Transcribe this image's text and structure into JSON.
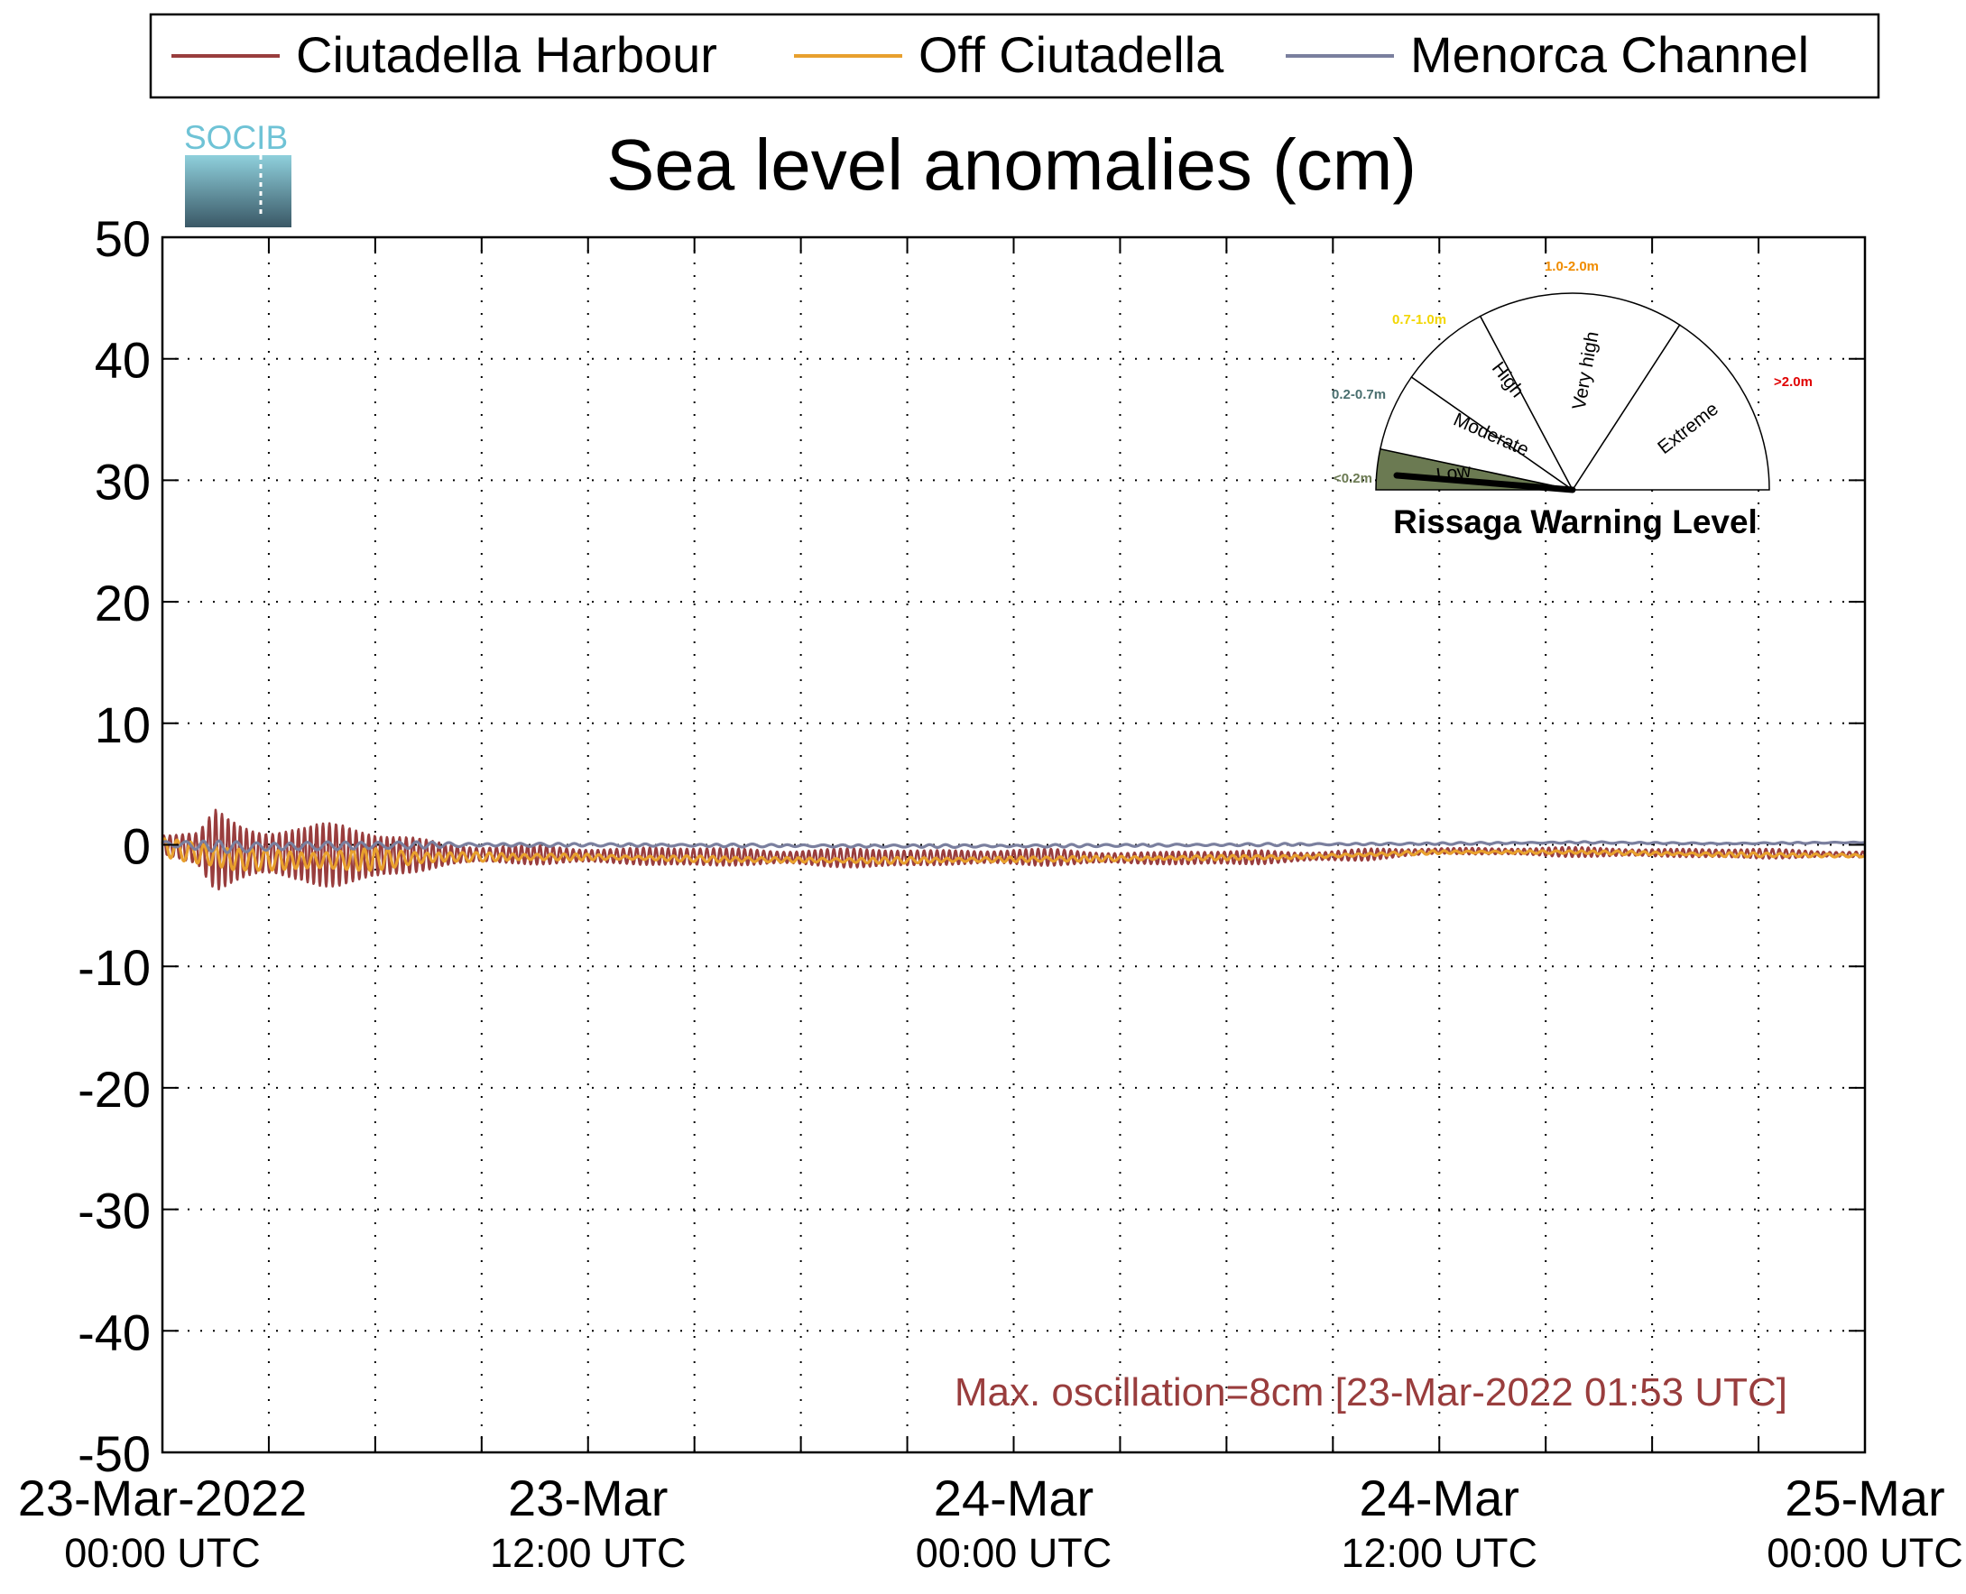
{
  "chart_data": {
    "type": "line",
    "title": "Sea level anomalies (cm)",
    "logo_text": "SOCIB",
    "ylim": [
      -50,
      50
    ],
    "yticks": [
      50,
      40,
      30,
      20,
      10,
      0,
      -10,
      -20,
      -30,
      -40,
      -50
    ],
    "ytick_labels": [
      "50",
      "40",
      "30",
      "20",
      "10",
      "0",
      "-10",
      "-20",
      "-30",
      "-40",
      "-50"
    ],
    "xlim_hours": [
      0,
      48
    ],
    "x_minor_ticks_hours": [
      3,
      6,
      9,
      15,
      18,
      21,
      27,
      30,
      33,
      39,
      42,
      45
    ],
    "x_major_ticks": [
      {
        "hours": 0,
        "line1": "23-Mar-2022",
        "line2": "00:00 UTC"
      },
      {
        "hours": 12,
        "line1": "23-Mar",
        "line2": "12:00 UTC"
      },
      {
        "hours": 24,
        "line1": "24-Mar",
        "line2": "00:00 UTC"
      },
      {
        "hours": 36,
        "line1": "24-Mar",
        "line2": "12:00 UTC"
      },
      {
        "hours": 48,
        "line1": "25-Mar",
        "line2": "00:00 UTC"
      }
    ],
    "grid": true,
    "legend_position": "top",
    "series": [
      {
        "name": "Ciutadella Harbour",
        "color": "#993d3d",
        "envelope": [
          [
            0,
            2
          ],
          [
            1,
            3
          ],
          [
            1.5,
            8
          ],
          [
            2,
            7
          ],
          [
            3,
            6
          ],
          [
            4,
            5
          ],
          [
            5,
            5.5
          ],
          [
            6,
            5
          ],
          [
            7,
            4
          ],
          [
            8,
            2.5
          ],
          [
            9,
            1.5
          ],
          [
            10,
            1.5
          ],
          [
            11,
            1.8
          ],
          [
            12,
            1.8
          ],
          [
            13,
            1.6
          ],
          [
            14,
            1.7
          ],
          [
            15,
            1.7
          ],
          [
            16,
            1.6
          ],
          [
            17,
            1.7
          ],
          [
            18,
            1.8
          ],
          [
            19,
            1.6
          ],
          [
            20,
            1.6
          ],
          [
            21,
            1.8
          ],
          [
            22,
            1.6
          ],
          [
            23,
            1.5
          ],
          [
            24,
            1.5
          ],
          [
            25,
            1.4
          ],
          [
            26,
            1.3
          ],
          [
            27,
            1.4
          ],
          [
            28,
            1.2
          ],
          [
            29,
            1.3
          ],
          [
            30,
            1.2
          ],
          [
            31,
            1.3
          ],
          [
            32,
            1.2
          ],
          [
            33,
            1.1
          ],
          [
            34,
            1.0
          ],
          [
            35,
            0.7
          ],
          [
            36,
            0.6
          ],
          [
            37,
            0.7
          ],
          [
            38,
            0.7
          ],
          [
            39,
            0.8
          ],
          [
            40,
            0.8
          ],
          [
            41,
            0.9
          ],
          [
            42,
            0.9
          ],
          [
            43,
            0.8
          ],
          [
            44,
            0.8
          ],
          [
            45,
            0.9
          ],
          [
            46,
            0.8
          ],
          [
            47,
            0.7
          ],
          [
            48,
            0.7
          ]
        ],
        "offset": [
          [
            0,
            0
          ],
          [
            2,
            -0.6
          ],
          [
            4,
            -0.8
          ],
          [
            6,
            -0.9
          ],
          [
            8,
            -0.8
          ],
          [
            10,
            -0.8
          ],
          [
            12,
            -0.9
          ],
          [
            16,
            -1.0
          ],
          [
            20,
            -1.1
          ],
          [
            24,
            -1.0
          ],
          [
            28,
            -1.1
          ],
          [
            32,
            -1.0
          ],
          [
            34,
            -0.8
          ],
          [
            36,
            -0.5
          ],
          [
            40,
            -0.6
          ],
          [
            44,
            -0.7
          ],
          [
            48,
            -0.8
          ]
        ],
        "period_hours": 0.18
      },
      {
        "name": "Off Ciutadella",
        "color": "#e8a02d",
        "envelope": [
          [
            0,
            1.5
          ],
          [
            2,
            2.5
          ],
          [
            4,
            2
          ],
          [
            6,
            1.8
          ],
          [
            8,
            1.2
          ],
          [
            10,
            0.6
          ],
          [
            14,
            0.5
          ],
          [
            20,
            0.5
          ],
          [
            24,
            0.5
          ],
          [
            30,
            0.4
          ],
          [
            36,
            0.3
          ],
          [
            40,
            0.3
          ],
          [
            44,
            0.4
          ],
          [
            48,
            0.3
          ]
        ],
        "offset": [
          [
            0,
            -0.2
          ],
          [
            2,
            -1.2
          ],
          [
            4,
            -1.3
          ],
          [
            6,
            -1.2
          ],
          [
            8,
            -1.0
          ],
          [
            12,
            -1.0
          ],
          [
            16,
            -1.2
          ],
          [
            20,
            -1.3
          ],
          [
            24,
            -1.2
          ],
          [
            28,
            -1.1
          ],
          [
            32,
            -1.0
          ],
          [
            36,
            -0.6
          ],
          [
            40,
            -0.6
          ],
          [
            44,
            -0.8
          ],
          [
            48,
            -0.9
          ]
        ],
        "period_hours": 0.35
      },
      {
        "name": "Menorca Channel",
        "color": "#7a7f9e",
        "envelope": [
          [
            0,
            0.6
          ],
          [
            2,
            1.0
          ],
          [
            4,
            0.9
          ],
          [
            6,
            0.7
          ],
          [
            8,
            0.5
          ],
          [
            10,
            0.3
          ],
          [
            16,
            0.25
          ],
          [
            24,
            0.25
          ],
          [
            32,
            0.2
          ],
          [
            40,
            0.15
          ],
          [
            48,
            0.1
          ]
        ],
        "offset": [
          [
            0,
            0.1
          ],
          [
            2,
            -0.2
          ],
          [
            4,
            -0.1
          ],
          [
            8,
            0
          ],
          [
            12,
            0
          ],
          [
            20,
            -0.1
          ],
          [
            24,
            -0.1
          ],
          [
            30,
            0
          ],
          [
            36,
            0.1
          ],
          [
            40,
            0.2
          ],
          [
            44,
            0.1
          ],
          [
            48,
            0.2
          ]
        ],
        "period_hours": 0.5
      }
    ],
    "annotation": "Max. oscillation=8cm [23-Mar-2022 01:53 UTC]",
    "annotation_color": "#993d3d",
    "gauge": {
      "title": "Rissaga Warning Level",
      "level": "Low",
      "segments": [
        {
          "name": "Low",
          "range": "<0.2m",
          "color": "#6b7a52"
        },
        {
          "name": "Moderate",
          "range": "0.2-0.7m",
          "color": "#4a6f6f"
        },
        {
          "name": "High",
          "range": "0.7-1.0m",
          "color": "#f2d600"
        },
        {
          "name": "Very high",
          "range": "1.0-2.0m",
          "color": "#f08c00"
        },
        {
          "name": "Extreme",
          "range": ">2.0m",
          "color": "#e00000"
        }
      ]
    }
  }
}
